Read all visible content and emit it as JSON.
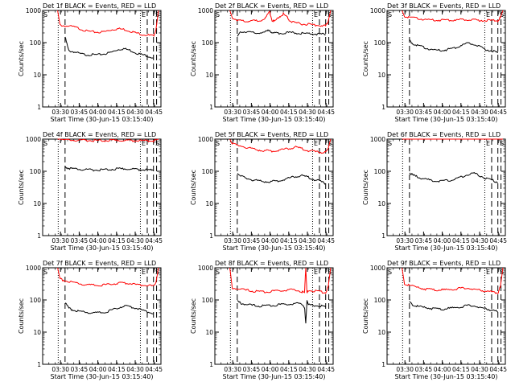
{
  "chart_data": {
    "type": "line",
    "time_origin": "03:15:40",
    "x_unit": "minutes since 03:15:40",
    "xlim": [
      0,
      95
    ],
    "ylim": [
      1,
      1000
    ],
    "yscale": "log",
    "ylabel": "Counts/sec",
    "xlabel": "Start Time (30-Jun-15 03:15:40)",
    "xtick_values": [
      14.33,
      29.33,
      44.33,
      59.33,
      74.33,
      89.33
    ],
    "xtick_labels": [
      "03:30",
      "03:45",
      "04:00",
      "04:15",
      "04:30",
      "04:45"
    ],
    "ytick_values": [
      1,
      10,
      100,
      1000
    ],
    "ytick_labels": [
      "1",
      "10",
      "100",
      "1000"
    ],
    "series_colors": {
      "events": "#000000",
      "lld": "#ff0000"
    },
    "event_marks": {
      "dotted_times": [
        12.5,
        78.5
      ],
      "dashed_times": [
        18,
        84,
        89,
        91.5
      ],
      "letters": {
        "S": "S",
        "E": "E"
      }
    },
    "panels": [
      {
        "title": "Det 1f BLACK = Events, RED = LLD",
        "events": {
          "x": [
            18,
            21,
            25,
            30,
            35,
            40,
            45,
            50,
            55,
            60,
            65,
            70,
            75,
            80,
            85,
            89
          ],
          "y": [
            150,
            55,
            52,
            45,
            42,
            42,
            42,
            45,
            50,
            60,
            65,
            58,
            48,
            42,
            38,
            33
          ]
        },
        "lld": {
          "x": [
            12,
            14,
            18,
            25,
            30,
            35,
            40,
            45,
            50,
            55,
            60,
            65,
            70,
            75,
            80,
            85,
            89,
            91,
            93
          ],
          "y": [
            1000,
            350,
            330,
            310,
            270,
            230,
            215,
            210,
            220,
            250,
            270,
            260,
            230,
            200,
            180,
            170,
            160,
            250,
            1000
          ]
        }
      },
      {
        "title": "Det 2f BLACK = Events, RED = LLD",
        "events": {
          "x": [
            18,
            21,
            25,
            30,
            35,
            40,
            44,
            46,
            50,
            55,
            60,
            65,
            70,
            75,
            80,
            85,
            89
          ],
          "y": [
            150,
            220,
            215,
            210,
            205,
            205,
            250,
            200,
            195,
            200,
            205,
            200,
            195,
            190,
            185,
            180,
            180
          ]
        },
        "lld": {
          "x": [
            12,
            14,
            18,
            22,
            26,
            30,
            35,
            40,
            44,
            46,
            48,
            52,
            55,
            58,
            60,
            65,
            70,
            75,
            80,
            85,
            89,
            91,
            93
          ],
          "y": [
            1000,
            600,
            500,
            480,
            470,
            470,
            480,
            550,
            900,
            500,
            450,
            650,
            780,
            620,
            480,
            400,
            380,
            370,
            350,
            340,
            330,
            450,
            1000
          ]
        }
      },
      {
        "title": "Det 3f BLACK = Events, RED = LLD",
        "events": {
          "x": [
            18,
            21,
            25,
            30,
            35,
            40,
            45,
            50,
            55,
            60,
            65,
            70,
            75,
            80,
            85,
            89
          ],
          "y": [
            120,
            90,
            80,
            70,
            62,
            58,
            58,
            62,
            70,
            85,
            95,
            88,
            72,
            60,
            55,
            48
          ]
        },
        "lld": {
          "x": [
            12,
            14,
            18,
            25,
            30,
            35,
            40,
            45,
            50,
            55,
            60,
            65,
            70,
            75,
            80,
            85,
            89,
            91,
            93
          ],
          "y": [
            1000,
            650,
            600,
            560,
            530,
            510,
            500,
            500,
            505,
            510,
            515,
            510,
            500,
            495,
            490,
            485,
            480,
            600,
            1000
          ]
        }
      },
      {
        "title": "Det 4f BLACK = Events, RED = LLD",
        "events": {
          "x": [
            18,
            21,
            25,
            30,
            35,
            40,
            45,
            50,
            55,
            60,
            65,
            70,
            75,
            80,
            85,
            89
          ],
          "y": [
            140,
            125,
            120,
            115,
            112,
            110,
            110,
            112,
            115,
            118,
            120,
            118,
            115,
            112,
            110,
            105
          ]
        },
        "lld": {
          "x": [
            12,
            14,
            18,
            25,
            30,
            35,
            40,
            45,
            50,
            55,
            60,
            65,
            70,
            75,
            80,
            85,
            89,
            91,
            93
          ],
          "y": [
            1000,
            1000,
            950,
            930,
            920,
            910,
            900,
            900,
            905,
            910,
            915,
            910,
            905,
            900,
            895,
            890,
            880,
            950,
            1000
          ]
        }
      },
      {
        "title": "Det 5f BLACK = Events, RED = LLD",
        "events": {
          "x": [
            18,
            21,
            25,
            30,
            35,
            40,
            45,
            50,
            55,
            60,
            65,
            70,
            75,
            80,
            85,
            89
          ],
          "y": [
            90,
            70,
            60,
            55,
            50,
            48,
            48,
            50,
            55,
            62,
            70,
            72,
            65,
            55,
            48,
            42
          ]
        },
        "lld": {
          "x": [
            12,
            14,
            18,
            25,
            30,
            35,
            40,
            45,
            50,
            55,
            60,
            65,
            70,
            75,
            80,
            85,
            89,
            91,
            93
          ],
          "y": [
            1000,
            700,
            650,
            560,
            500,
            460,
            440,
            430,
            440,
            480,
            520,
            560,
            500,
            440,
            410,
            390,
            380,
            500,
            1000
          ]
        }
      },
      {
        "title": "Det 6f BLACK = Events, RED = LLD",
        "events": {
          "x": [
            18,
            21,
            25,
            30,
            35,
            40,
            45,
            50,
            55,
            60,
            65,
            70,
            75,
            80,
            85,
            89
          ],
          "y": [
            90,
            75,
            65,
            58,
            52,
            50,
            50,
            52,
            58,
            68,
            80,
            85,
            72,
            60,
            52,
            45
          ]
        },
        "lld": {
          "x": [
            12,
            14,
            18,
            25,
            30,
            35,
            40,
            45,
            50,
            55,
            60,
            65,
            70,
            75,
            80,
            85,
            89,
            91,
            93
          ],
          "y": [
            1000,
            1000,
            1000,
            1000,
            1000,
            1000,
            1000,
            1000,
            1000,
            1000,
            1000,
            1000,
            1000,
            1000,
            1000,
            1000,
            1000,
            1000,
            1000
          ]
        }
      },
      {
        "title": "Det 7f BLACK = Events, RED = LLD",
        "events": {
          "x": [
            18,
            21,
            25,
            30,
            35,
            40,
            45,
            50,
            55,
            60,
            65,
            70,
            75,
            80,
            85,
            89
          ],
          "y": [
            80,
            55,
            48,
            44,
            42,
            40,
            40,
            42,
            48,
            55,
            65,
            62,
            55,
            48,
            42,
            38
          ]
        },
        "lld": {
          "x": [
            12,
            14,
            18,
            25,
            30,
            35,
            40,
            45,
            50,
            55,
            60,
            65,
            70,
            75,
            80,
            85,
            89,
            91,
            93
          ],
          "y": [
            1000,
            450,
            400,
            350,
            320,
            300,
            290,
            290,
            295,
            310,
            330,
            340,
            320,
            300,
            290,
            280,
            270,
            350,
            1000
          ]
        }
      },
      {
        "title": "Det 8f BLACK = Events, RED = LLD",
        "events": {
          "x": [
            18,
            21,
            25,
            30,
            35,
            40,
            45,
            50,
            55,
            60,
            65,
            70,
            72,
            73,
            74,
            75,
            80,
            85,
            89
          ],
          "y": [
            90,
            80,
            72,
            68,
            65,
            65,
            68,
            70,
            72,
            75,
            78,
            75,
            60,
            18,
            100,
            70,
            68,
            65,
            60
          ]
        },
        "lld": {
          "x": [
            12,
            14,
            18,
            25,
            30,
            35,
            40,
            45,
            50,
            55,
            60,
            65,
            70,
            72,
            73,
            74,
            75,
            80,
            85,
            89,
            91,
            93
          ],
          "y": [
            1000,
            240,
            220,
            200,
            190,
            180,
            180,
            185,
            190,
            200,
            210,
            205,
            180,
            170,
            1000,
            160,
            200,
            190,
            180,
            170,
            250,
            1000
          ]
        }
      },
      {
        "title": "Det 9f BLACK = Events, RED = LLD",
        "events": {
          "x": [
            18,
            21,
            25,
            30,
            35,
            40,
            45,
            50,
            55,
            60,
            65,
            70,
            75,
            80,
            85,
            89
          ],
          "y": [
            85,
            70,
            62,
            58,
            55,
            52,
            52,
            55,
            58,
            62,
            68,
            65,
            58,
            52,
            48,
            42
          ]
        },
        "lld": {
          "x": [
            12,
            14,
            18,
            25,
            30,
            35,
            40,
            45,
            50,
            55,
            60,
            65,
            70,
            75,
            80,
            85,
            89,
            91,
            93
          ],
          "y": [
            1000,
            320,
            280,
            240,
            220,
            210,
            205,
            205,
            210,
            220,
            235,
            230,
            215,
            200,
            185,
            175,
            165,
            250,
            1000
          ]
        }
      }
    ]
  }
}
